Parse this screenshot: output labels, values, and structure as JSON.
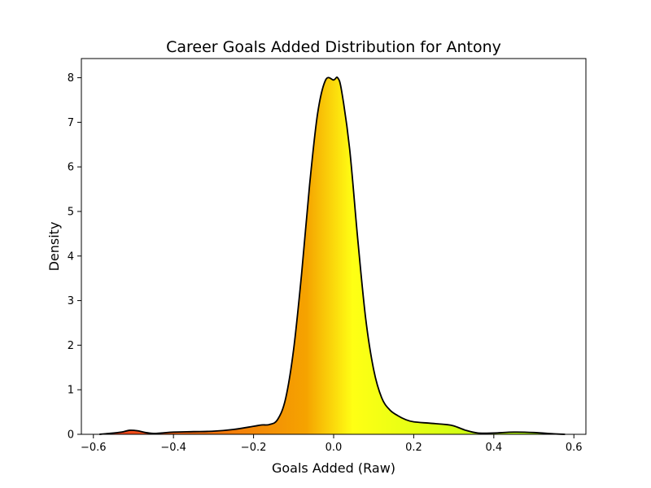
{
  "chart_data": {
    "type": "area",
    "title": "Career Goals Added Distribution for Antony",
    "xlabel": "Goals Added (Raw)",
    "ylabel": "Density",
    "xlim": [
      -0.63,
      0.63
    ],
    "ylim": [
      0,
      8.43
    ],
    "xticks": [
      -0.6,
      -0.4,
      -0.2,
      0.0,
      0.2,
      0.4,
      0.6
    ],
    "xtick_labels": [
      "−0.6",
      "−0.4",
      "−0.2",
      "0.0",
      "0.2",
      "0.4",
      "0.6"
    ],
    "yticks": [
      0,
      1,
      2,
      3,
      4,
      5,
      6,
      7,
      8
    ],
    "ytick_labels": [
      "0",
      "1",
      "2",
      "3",
      "4",
      "5",
      "6",
      "7",
      "8"
    ],
    "grid": false,
    "fill_gradient": [
      "#f03a1e",
      "#f5a300",
      "#ffff14",
      "#c4ff14"
    ],
    "line_color": "#000000",
    "series": [
      {
        "x": [
          -0.585,
          -0.56,
          -0.53,
          -0.51,
          -0.49,
          -0.47,
          -0.45,
          -0.43,
          -0.4,
          -0.35,
          -0.3,
          -0.25,
          -0.2,
          -0.18,
          -0.16,
          -0.14,
          -0.12,
          -0.1,
          -0.08,
          -0.06,
          -0.04,
          -0.02,
          0.0,
          0.01,
          0.02,
          0.04,
          0.06,
          0.08,
          0.1,
          0.12,
          0.14,
          0.16,
          0.18,
          0.2,
          0.24,
          0.28,
          0.3,
          0.33,
          0.36,
          0.4,
          0.45,
          0.5,
          0.55,
          0.578
        ],
        "y": [
          0.0,
          0.02,
          0.05,
          0.09,
          0.08,
          0.04,
          0.02,
          0.03,
          0.05,
          0.06,
          0.07,
          0.11,
          0.18,
          0.21,
          0.22,
          0.33,
          0.8,
          1.9,
          3.6,
          5.6,
          7.2,
          7.95,
          7.95,
          8.0,
          7.7,
          6.4,
          4.4,
          2.6,
          1.45,
          0.82,
          0.55,
          0.42,
          0.33,
          0.28,
          0.25,
          0.22,
          0.19,
          0.09,
          0.03,
          0.03,
          0.05,
          0.04,
          0.01,
          0.0
        ]
      }
    ]
  }
}
